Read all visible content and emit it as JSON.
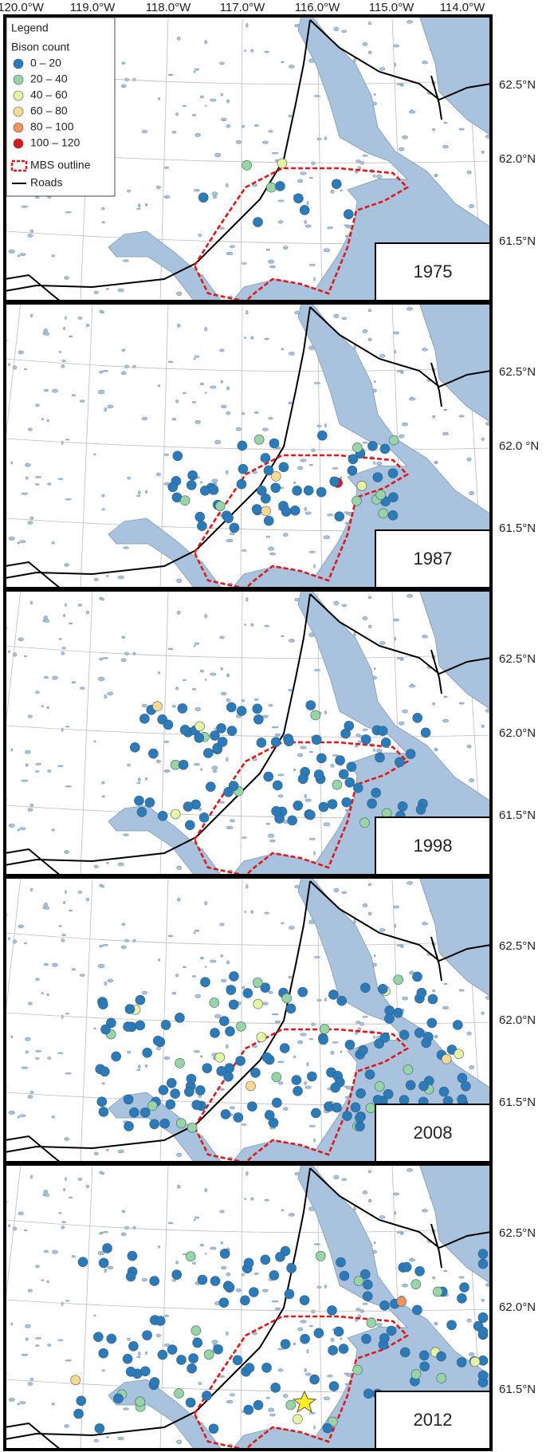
{
  "header": {
    "longitude_labels": [
      "120.0°W",
      "119.0°W",
      "118.0°W",
      "117.0°W",
      "116.0°W",
      "115.0°W",
      "114.0°W"
    ]
  },
  "legend": {
    "title": "Legend",
    "subtitle": "Bison count",
    "items": [
      {
        "label": "0 – 20",
        "color": "#2b7bba"
      },
      {
        "label": "20 – 40",
        "color": "#99d4a4"
      },
      {
        "label": "40 – 60",
        "color": "#e6f4a0"
      },
      {
        "label": "60 – 80",
        "color": "#fdd98f"
      },
      {
        "label": "80 – 100",
        "color": "#f4945a"
      },
      {
        "label": "100 – 120",
        "color": "#d7191c"
      }
    ],
    "outline": "MBS outline",
    "roads": "Roads"
  },
  "panels": [
    {
      "year": "1975",
      "latitude_labels": [
        "62.5°N",
        "62.0°N",
        "61.5°N"
      ]
    },
    {
      "year": "1987",
      "latitude_labels": [
        "62.5°N",
        "62.0 °N",
        "61.5°N"
      ]
    },
    {
      "year": "1998",
      "latitude_labels": [
        "62.5°N",
        "62.0°N",
        "61.5°N"
      ]
    },
    {
      "year": "2008",
      "latitude_labels": [
        "62.5°N",
        "62.0°N",
        "61.5°N"
      ]
    },
    {
      "year": "2012",
      "latitude_labels": [
        "62.5°N",
        "62.0°N",
        "61.5°N"
      ]
    }
  ]
}
